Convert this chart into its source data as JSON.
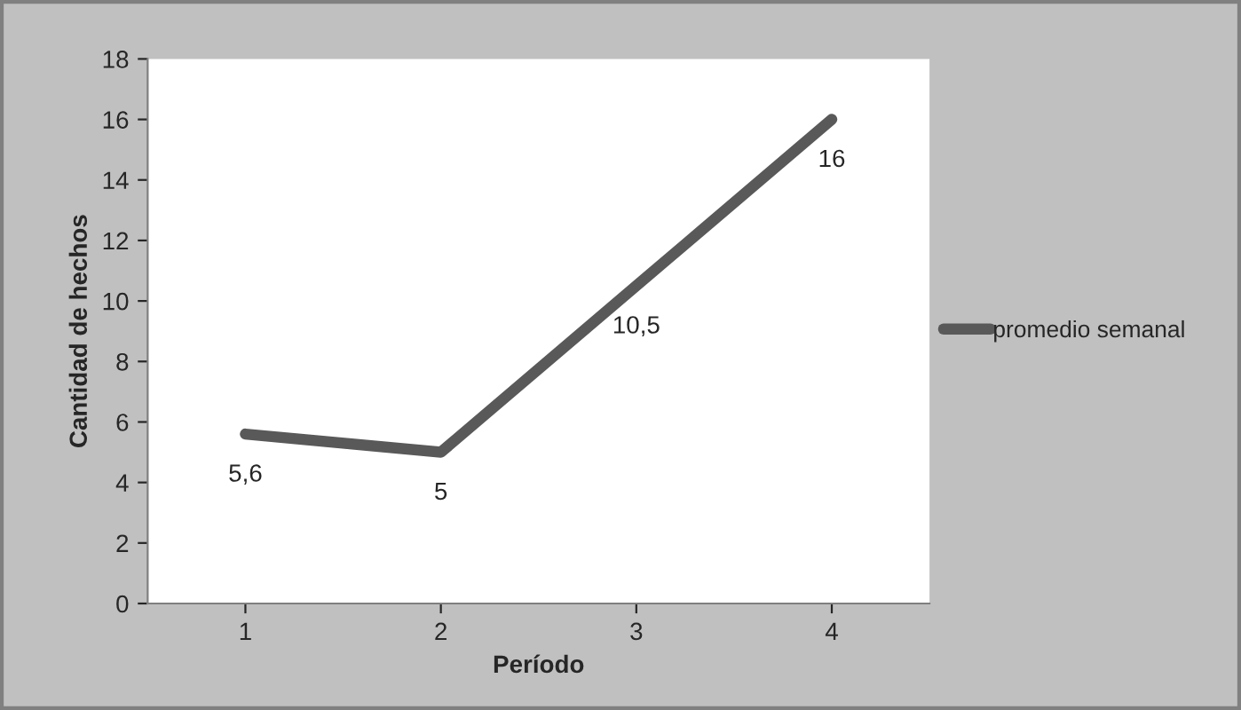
{
  "chart_data": {
    "type": "line",
    "xlabel": "Período",
    "ylabel": "Cantidad de hechos",
    "categories": [
      "1",
      "2",
      "3",
      "4"
    ],
    "series": [
      {
        "name": "promedio semanal",
        "color": "#595959",
        "values": [
          5.6,
          5,
          10.5,
          16
        ],
        "value_labels": [
          "5,6",
          "5",
          "10,5",
          "16"
        ]
      }
    ],
    "ylim": [
      0,
      18
    ],
    "yticks": [
      0,
      2,
      4,
      6,
      8,
      10,
      12,
      14,
      16,
      18
    ],
    "grid": false,
    "legend": "right",
    "marker": "none",
    "line_style": "solid"
  }
}
